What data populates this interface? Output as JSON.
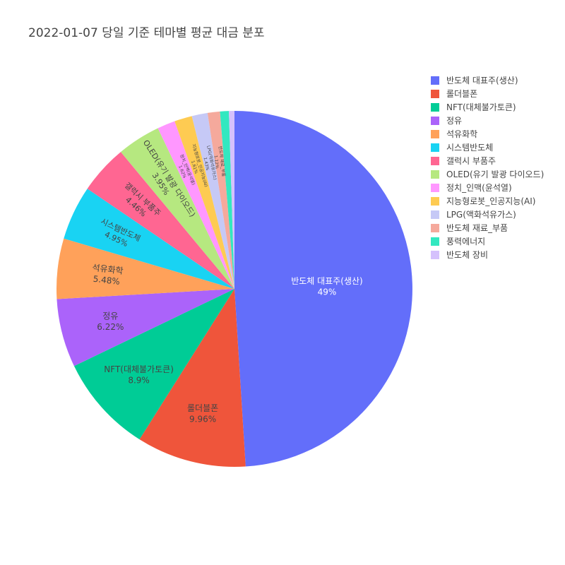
{
  "chart_data": {
    "type": "pie",
    "title": "2022-01-07 당일 기준 테마별 평균 대금 분포",
    "slices": [
      {
        "label": "반도체 대표주(생산)",
        "percent": 49,
        "display": "49%",
        "color": "#636efa"
      },
      {
        "label": "롤더블폰",
        "percent": 9.96,
        "display": "9.96%",
        "color": "#ef553b"
      },
      {
        "label": "NFT(대체불가토큰)",
        "percent": 8.9,
        "display": "8.9%",
        "color": "#00cc96"
      },
      {
        "label": "정유",
        "percent": 6.22,
        "display": "6.22%",
        "color": "#ab63fa"
      },
      {
        "label": "석유화학",
        "percent": 5.48,
        "display": "5.48%",
        "color": "#ffa15a"
      },
      {
        "label": "시스템반도체",
        "percent": 4.95,
        "display": "4.95%",
        "color": "#19d3f3"
      },
      {
        "label": "갤럭시 부품주",
        "percent": 4.46,
        "display": "4.46%",
        "color": "#ff6692"
      },
      {
        "label": "OLED(유기 발광 다이오드)",
        "percent": 3.95,
        "display": "3.95%",
        "color": "#b6e880"
      },
      {
        "label": "정치_인맥(윤석열)",
        "percent": 1.62,
        "display": "1.62%",
        "color": "#ff97ff"
      },
      {
        "label": "지능형로봇_인공지능(AI)",
        "percent": 1.61,
        "display": "1.61%",
        "color": "#fecb52"
      },
      {
        "label": "LPG(액화석유가스)",
        "percent": 1.43,
        "display": "1.43%",
        "color": "#c6c9f6"
      },
      {
        "label": "반도체 재료_부품",
        "percent": 1.12,
        "display": "1.12%",
        "color": "#f5a99c"
      },
      {
        "label": "풍력에너지",
        "percent": 0.8,
        "display": "",
        "color": "#33e8c0"
      },
      {
        "label": "반도체 장비",
        "percent": 0.5,
        "display": "",
        "color": "#d5c1fc"
      }
    ],
    "sort": "descending",
    "direction": "clockwise",
    "start": "top",
    "legend_position": "top-right"
  }
}
